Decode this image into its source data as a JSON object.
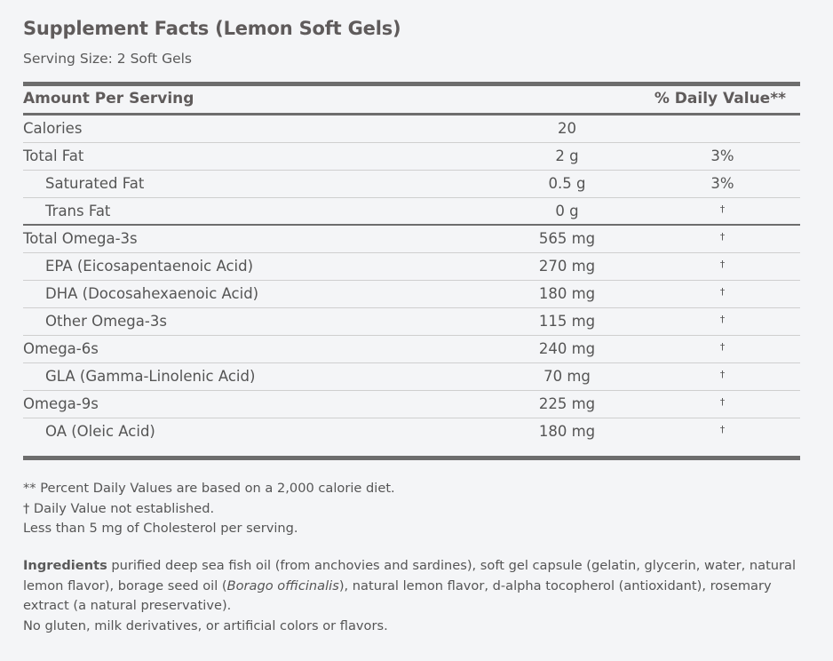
{
  "title": "Supplement Facts (Lemon Soft Gels)",
  "serving_size": "Serving Size: 2 Soft Gels",
  "header": {
    "amount": "Amount Per Serving",
    "daily_value": "% Daily Value**"
  },
  "rows": [
    {
      "name": "Calories",
      "amount": "20",
      "dv": "",
      "indent": false
    },
    {
      "name": "Total Fat",
      "amount": "2 g",
      "dv": "3%",
      "indent": false
    },
    {
      "name": "Saturated Fat",
      "amount": "0.5 g",
      "dv": "3%",
      "indent": true
    },
    {
      "name": "Trans Fat",
      "amount": "0 g",
      "dv": "†",
      "indent": true,
      "thick": true
    },
    {
      "name": "Total Omega-3s",
      "amount": "565 mg",
      "dv": "†",
      "indent": false
    },
    {
      "name": "EPA (Eicosapentaenoic Acid)",
      "amount": "270 mg",
      "dv": "†",
      "indent": true
    },
    {
      "name": "DHA (Docosahexaenoic Acid)",
      "amount": "180 mg",
      "dv": "†",
      "indent": true
    },
    {
      "name": "Other Omega-3s",
      "amount": "115 mg",
      "dv": "†",
      "indent": true
    },
    {
      "name": "Omega-6s",
      "amount": "240 mg",
      "dv": "†",
      "indent": false
    },
    {
      "name": "GLA (Gamma-Linolenic Acid)",
      "amount": "70 mg",
      "dv": "†",
      "indent": true
    },
    {
      "name": "Omega-9s",
      "amount": "225 mg",
      "dv": "†",
      "indent": false
    },
    {
      "name": "OA (Oleic Acid)",
      "amount": "180 mg",
      "dv": "†",
      "indent": true,
      "last": true
    }
  ],
  "notes": [
    "** Percent Daily Values are based on a 2,000 calorie diet.",
    "† Daily Value not established.",
    "Less than 5 mg of Cholesterol per serving."
  ],
  "ingredients": {
    "label": "Ingredients",
    "text_1": " purified deep sea fish oil (from anchovies and sardines), soft gel capsule (gelatin, glycerin, water, natural lemon flavor), borage seed oil (",
    "italic": "Borago officinalis",
    "text_2": "), natural lemon flavor, d-alpha tocopherol (antioxidant), rosemary extract (a natural preservative).",
    "free_from": "No gluten, milk derivatives, or artificial colors or flavors."
  }
}
